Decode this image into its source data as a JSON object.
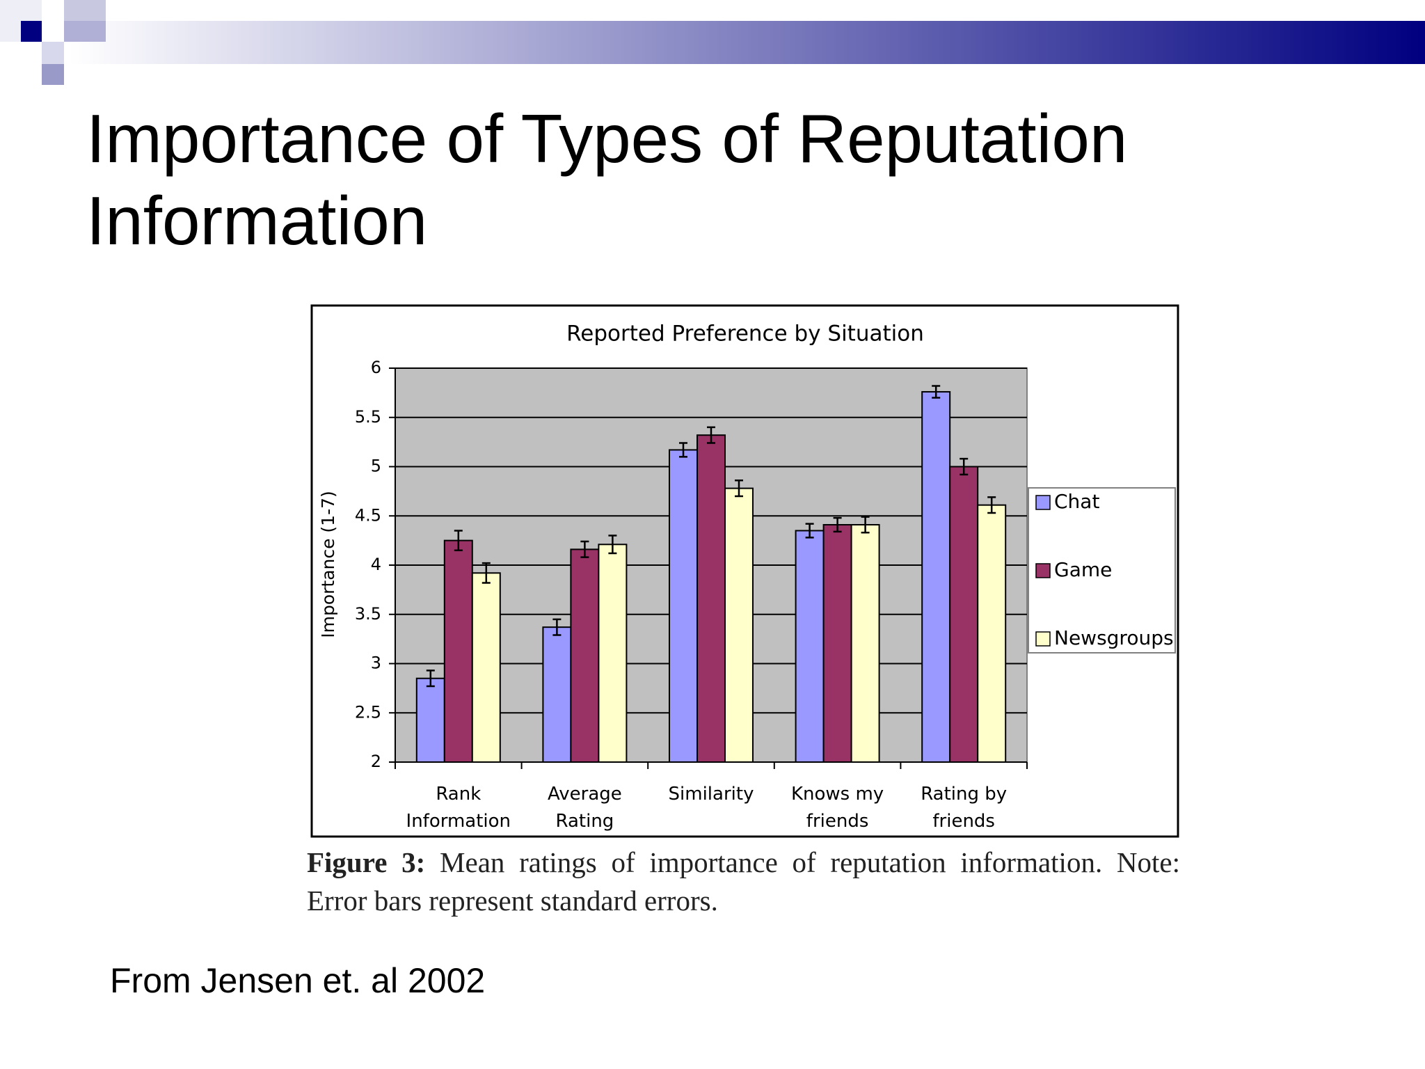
{
  "slide_title": "Importance of Types of Reputation Information",
  "chart_data": {
    "type": "bar",
    "title": "Reported Preference by Situation",
    "y_label": "Importance (1-7)",
    "categories": [
      "Rank Information",
      "Average Rating",
      "Similarity",
      "Knows my friends",
      "Rating by friends"
    ],
    "series": [
      {
        "name": "Chat",
        "color": "#9999ff",
        "values": [
          2.85,
          3.37,
          5.17,
          4.35,
          5.76
        ],
        "errors": [
          0.08,
          0.08,
          0.07,
          0.07,
          0.06
        ]
      },
      {
        "name": "Game",
        "color": "#993366",
        "values": [
          4.25,
          4.16,
          5.32,
          4.41,
          5.0
        ],
        "errors": [
          0.1,
          0.08,
          0.08,
          0.07,
          0.08
        ]
      },
      {
        "name": "Newsgroups",
        "color": "#ffffcc",
        "values": [
          3.92,
          4.21,
          4.78,
          4.41,
          4.61
        ],
        "errors": [
          0.1,
          0.09,
          0.08,
          0.08,
          0.08
        ]
      }
    ],
    "ylim": [
      2,
      6
    ],
    "yticks": [
      2,
      2.5,
      3,
      3.5,
      4,
      4.5,
      5,
      5.5,
      6
    ],
    "grid": true,
    "legend": "right"
  },
  "caption": {
    "label": "Figure 3:",
    "text": "Mean ratings of importance of reputation information. Note: Error bars represent standard errors."
  },
  "source": "From Jensen et. al 2002"
}
